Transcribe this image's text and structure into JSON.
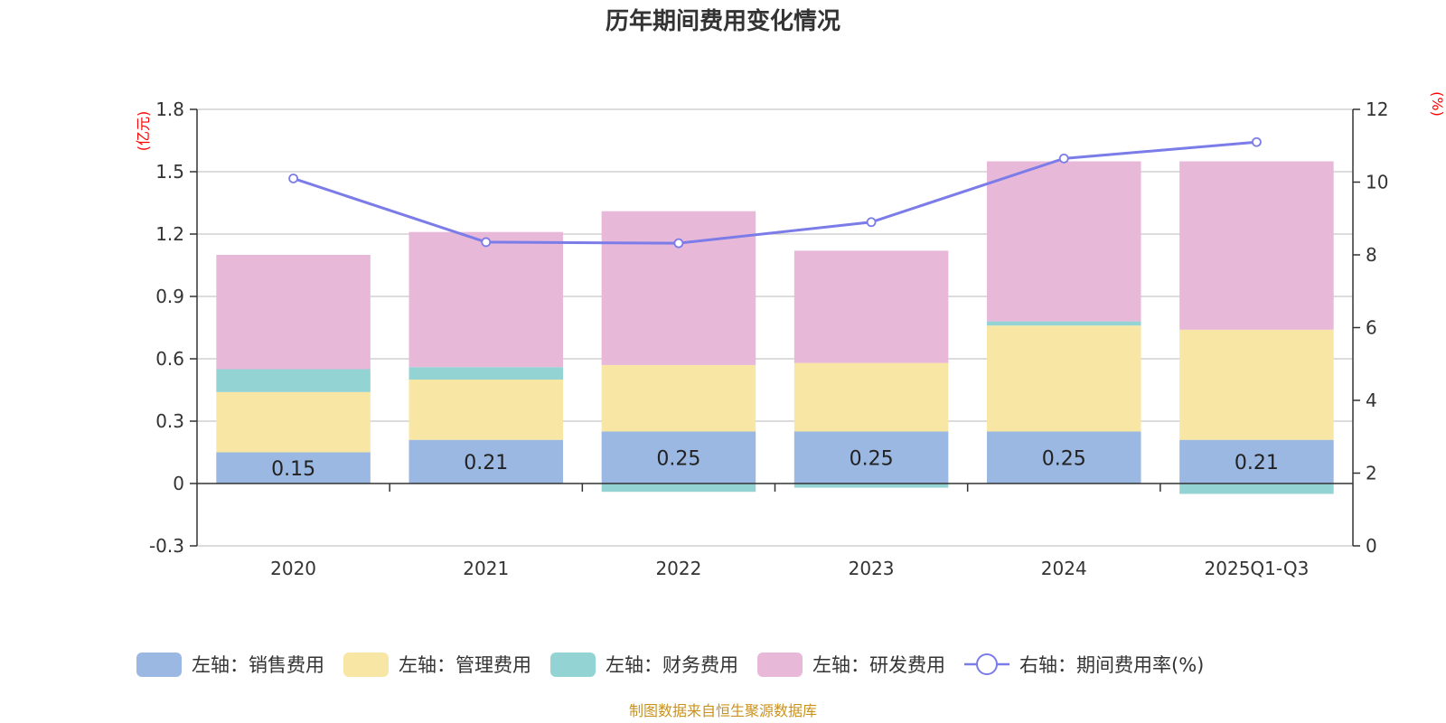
{
  "chart_data": {
    "type": "bar",
    "title": "历年期间费用变化情况",
    "categories": [
      "2020",
      "2021",
      "2022",
      "2023",
      "2024",
      "2025Q1-Q3"
    ],
    "series": [
      {
        "name": "左轴：销售费用",
        "axis": "left",
        "color": "#9bb8e3",
        "values": [
          0.15,
          0.21,
          0.25,
          0.25,
          0.25,
          0.21
        ]
      },
      {
        "name": "左轴：管理费用",
        "axis": "left",
        "color": "#f8e6a5",
        "values": [
          0.29,
          0.29,
          0.32,
          0.33,
          0.51,
          0.53
        ]
      },
      {
        "name": "左轴：财务费用",
        "axis": "left",
        "color": "#94d3d4",
        "values": [
          0.11,
          0.06,
          -0.04,
          -0.02,
          0.02,
          -0.05
        ]
      },
      {
        "name": "左轴：研发费用",
        "axis": "left",
        "color": "#e8b8d9",
        "values": [
          0.55,
          0.65,
          0.74,
          0.54,
          0.77,
          0.81
        ]
      },
      {
        "name": "右轴：期间费用率(%)",
        "axis": "right",
        "type": "line",
        "color": "#7b7ce8",
        "values": [
          10.1,
          8.35,
          8.32,
          8.9,
          10.65,
          11.1
        ]
      }
    ],
    "bar_labels": [
      "0.15",
      "0.21",
      "0.25",
      "0.25",
      "0.25",
      "0.21"
    ],
    "y_left": {
      "unit": "(亿元)",
      "ylim": [
        -0.3,
        1.8
      ],
      "ticks": [
        -0.3,
        0,
        0.3,
        0.6,
        0.9,
        1.2,
        1.5,
        1.8
      ],
      "tick_labels": [
        "-0.3",
        "0",
        "0.3",
        "0.6",
        "0.9",
        "1.2",
        "1.5",
        "1.8"
      ]
    },
    "y_right": {
      "unit": "(%)",
      "ylim": [
        0,
        12
      ],
      "ticks": [
        0,
        2,
        4,
        6,
        8,
        10,
        12
      ],
      "tick_labels": [
        "0",
        "2",
        "4",
        "6",
        "8",
        "10",
        "12"
      ]
    },
    "grid": true,
    "legend_position": "bottom",
    "source": "制图数据来自恒生聚源数据库"
  }
}
